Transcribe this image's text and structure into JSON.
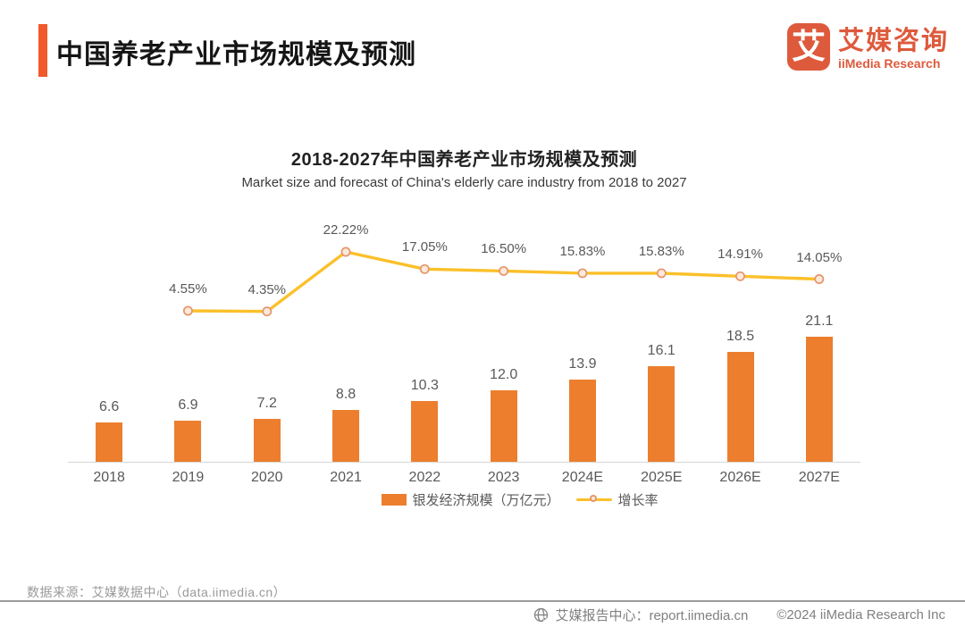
{
  "header": {
    "title": "中国养老产业市场规模及预测",
    "logo": {
      "glyph": "艾",
      "brand_cn": "艾媒咨询",
      "brand_en": "iiMedia Research"
    }
  },
  "chart_data": {
    "type": "bar+line",
    "title": "2018-2027年中国养老产业市场规模及预测",
    "subtitle": "Market size and forecast of China's elderly care industry from 2018 to 2027",
    "categories": [
      "2018",
      "2019",
      "2020",
      "2021",
      "2022",
      "2023",
      "2024E",
      "2025E",
      "2026E",
      "2027E"
    ],
    "series": [
      {
        "name": "银发经济规模（万亿元）",
        "type": "bar",
        "color": "#EC7E2E",
        "values": [
          6.6,
          6.9,
          7.2,
          8.8,
          10.3,
          12.0,
          13.9,
          16.1,
          18.5,
          21.1
        ],
        "labels": [
          "6.6",
          "6.9",
          "7.2",
          "8.8",
          "10.3",
          "12.0",
          "13.9",
          "16.1",
          "18.5",
          "21.1"
        ]
      },
      {
        "name": "增长率",
        "type": "line",
        "color": "#FBC02A",
        "marker_fill": "#FBE9DB",
        "marker_stroke": "#E6956B",
        "values": [
          null,
          4.55,
          4.35,
          22.22,
          17.05,
          16.5,
          15.83,
          15.83,
          14.91,
          14.05
        ],
        "labels": [
          null,
          "4.55%",
          "4.35%",
          "22.22%",
          "17.05%",
          "16.50%",
          "15.83%",
          "15.83%",
          "14.91%",
          "14.05%"
        ]
      }
    ],
    "legend_position": "bottom",
    "grid": false,
    "y_axis_visible": false,
    "bar_ylim": [
      0,
      41.7
    ],
    "line_ylim_pct": [
      -14.05,
      22.22
    ]
  },
  "source": {
    "text": "数据来源：艾媒数据中心（data.iimedia.cn）"
  },
  "footer": {
    "report_center": "艾媒报告中心：report.iimedia.cn",
    "copyright": "©2024  iiMedia Research Inc"
  }
}
